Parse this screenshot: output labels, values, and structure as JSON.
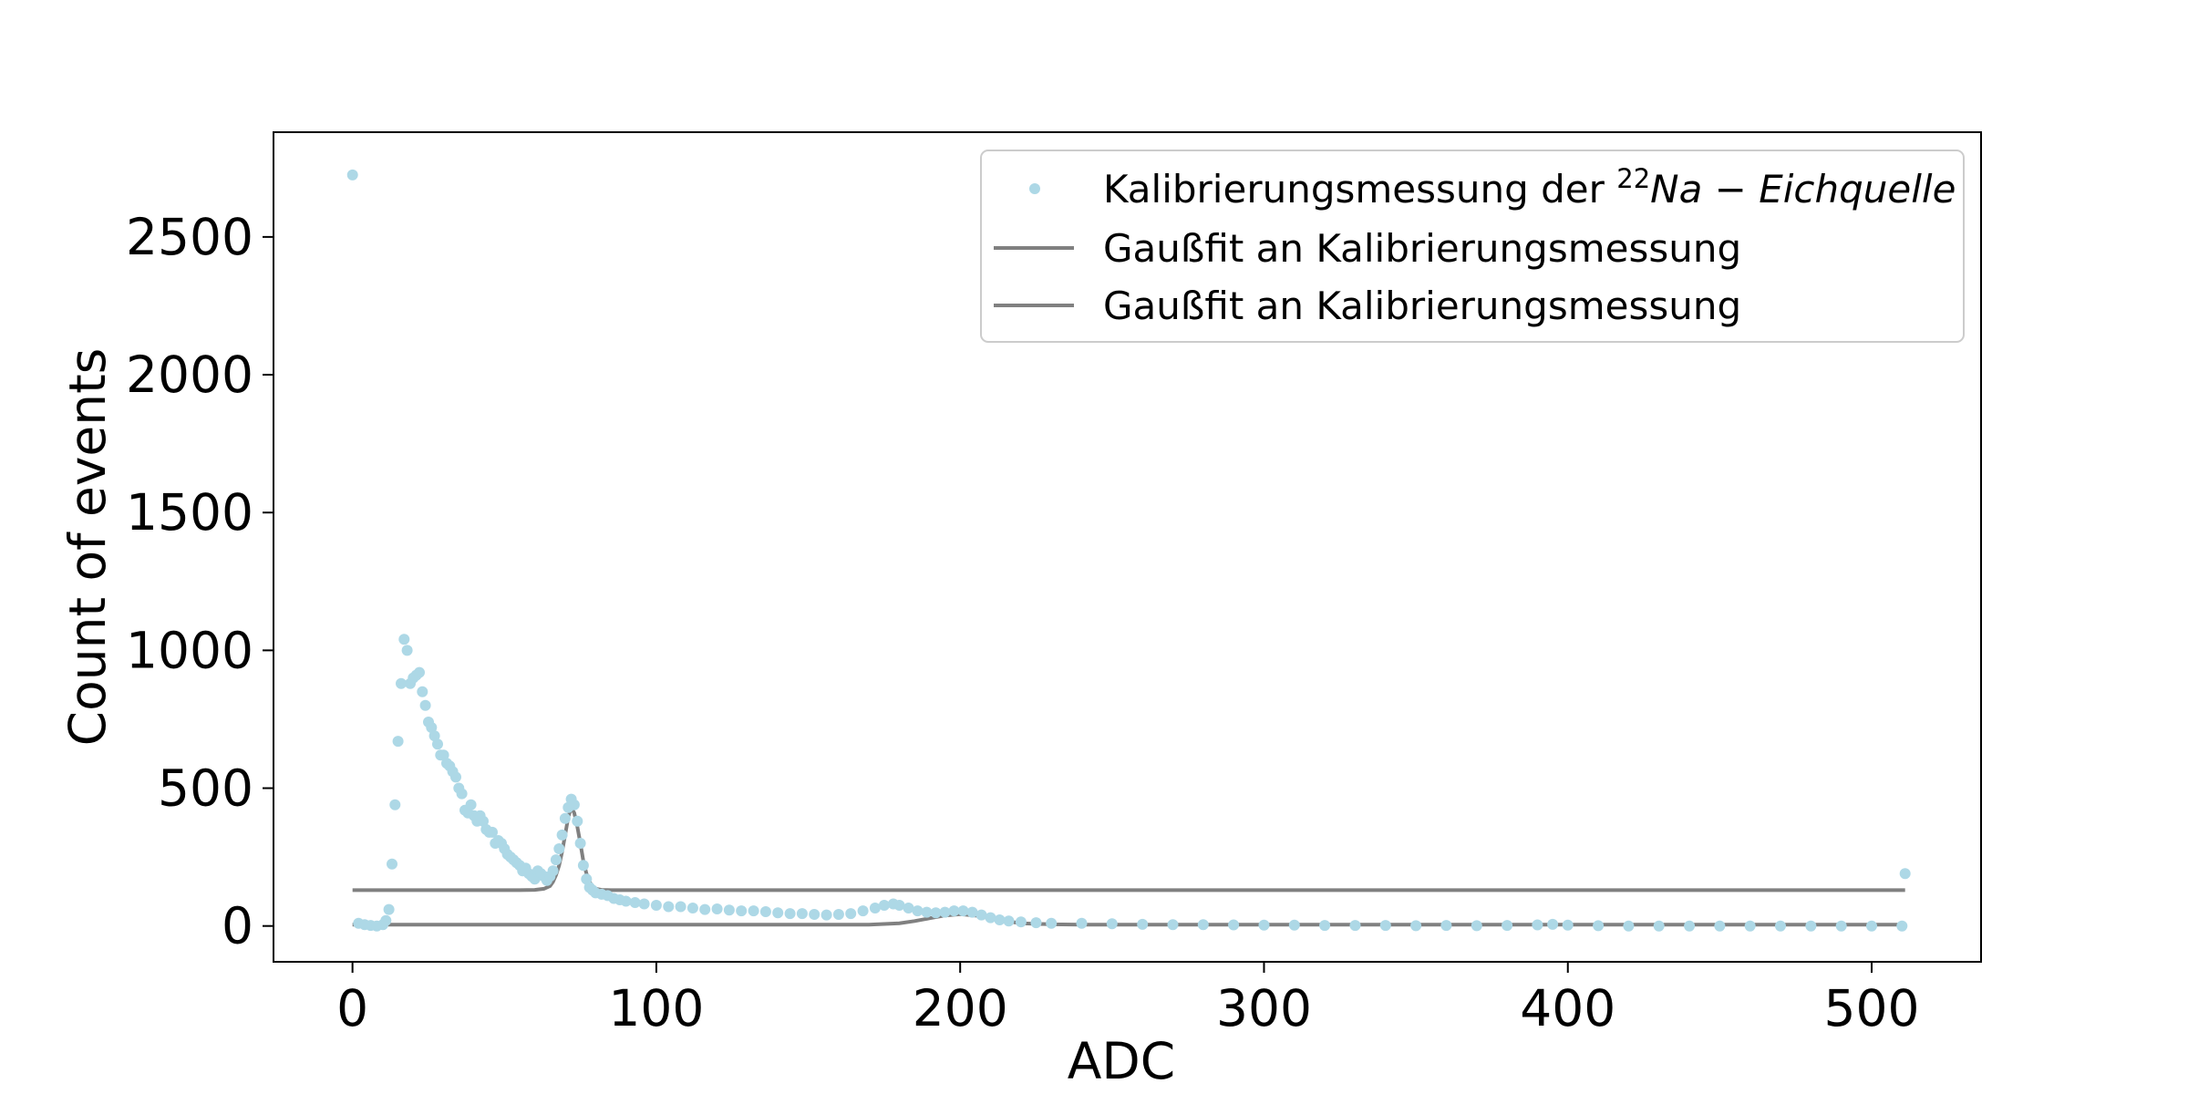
{
  "chart_data": {
    "type": "scatter",
    "xlabel": "ADC",
    "ylabel": "Count of events",
    "xlim": [
      -26,
      536
    ],
    "ylim": [
      -130,
      2880
    ],
    "xticks": [
      0,
      100,
      200,
      300,
      400,
      500
    ],
    "yticks": [
      0,
      500,
      1000,
      1500,
      2000,
      2500
    ],
    "grid": false,
    "legend": {
      "placement": "top-right",
      "entries": [
        {
          "label_prefix": "Kalibrierungsmessung der ",
          "superscript": "22",
          "label_math": "Na − Eichquelle",
          "marker": "dot",
          "color": "#add8e6"
        },
        {
          "label": "Gaußfit an Kalibrierungsmessung",
          "marker": "line",
          "color": "#808080"
        },
        {
          "label": "Gaußfit an Kalibrierungsmessung",
          "marker": "line",
          "color": "#808080"
        }
      ]
    },
    "series": [
      {
        "kind": "scatter",
        "color": "#add8e6",
        "points": [
          [
            0,
            2725
          ],
          [
            2,
            10
          ],
          [
            4,
            5
          ],
          [
            6,
            2
          ],
          [
            8,
            0
          ],
          [
            10,
            5
          ],
          [
            11,
            20
          ],
          [
            12,
            60
          ],
          [
            13,
            225
          ],
          [
            14,
            440
          ],
          [
            15,
            670
          ],
          [
            16,
            880
          ],
          [
            17,
            1040
          ],
          [
            18,
            1000
          ],
          [
            19,
            880
          ],
          [
            20,
            900
          ],
          [
            21,
            910
          ],
          [
            22,
            920
          ],
          [
            23,
            850
          ],
          [
            24,
            800
          ],
          [
            25,
            740
          ],
          [
            26,
            720
          ],
          [
            27,
            690
          ],
          [
            28,
            660
          ],
          [
            29,
            620
          ],
          [
            30,
            620
          ],
          [
            31,
            590
          ],
          [
            32,
            580
          ],
          [
            33,
            560
          ],
          [
            34,
            540
          ],
          [
            35,
            500
          ],
          [
            36,
            480
          ],
          [
            37,
            420
          ],
          [
            38,
            410
          ],
          [
            39,
            440
          ],
          [
            40,
            400
          ],
          [
            41,
            380
          ],
          [
            42,
            400
          ],
          [
            43,
            380
          ],
          [
            44,
            350
          ],
          [
            45,
            340
          ],
          [
            46,
            340
          ],
          [
            47,
            300
          ],
          [
            48,
            310
          ],
          [
            49,
            300
          ],
          [
            50,
            280
          ],
          [
            51,
            260
          ],
          [
            52,
            250
          ],
          [
            53,
            240
          ],
          [
            54,
            230
          ],
          [
            55,
            220
          ],
          [
            56,
            200
          ],
          [
            57,
            210
          ],
          [
            58,
            190
          ],
          [
            59,
            180
          ],
          [
            60,
            170
          ],
          [
            61,
            200
          ],
          [
            62,
            190
          ],
          [
            63,
            180
          ],
          [
            64,
            165
          ],
          [
            65,
            180
          ],
          [
            66,
            200
          ],
          [
            67,
            240
          ],
          [
            68,
            280
          ],
          [
            69,
            330
          ],
          [
            70,
            390
          ],
          [
            71,
            430
          ],
          [
            72,
            460
          ],
          [
            73,
            440
          ],
          [
            74,
            380
          ],
          [
            75,
            300
          ],
          [
            76,
            220
          ],
          [
            77,
            170
          ],
          [
            78,
            140
          ],
          [
            79,
            130
          ],
          [
            80,
            120
          ],
          [
            82,
            115
          ],
          [
            84,
            110
          ],
          [
            86,
            100
          ],
          [
            88,
            95
          ],
          [
            90,
            90
          ],
          [
            93,
            85
          ],
          [
            96,
            80
          ],
          [
            100,
            75
          ],
          [
            104,
            70
          ],
          [
            108,
            70
          ],
          [
            112,
            65
          ],
          [
            116,
            60
          ],
          [
            120,
            62
          ],
          [
            124,
            58
          ],
          [
            128,
            55
          ],
          [
            132,
            55
          ],
          [
            136,
            52
          ],
          [
            140,
            48
          ],
          [
            144,
            45
          ],
          [
            148,
            45
          ],
          [
            152,
            42
          ],
          [
            156,
            40
          ],
          [
            160,
            42
          ],
          [
            164,
            45
          ],
          [
            168,
            55
          ],
          [
            172,
            65
          ],
          [
            175,
            75
          ],
          [
            178,
            80
          ],
          [
            180,
            75
          ],
          [
            183,
            65
          ],
          [
            186,
            55
          ],
          [
            189,
            50
          ],
          [
            192,
            48
          ],
          [
            195,
            50
          ],
          [
            198,
            55
          ],
          [
            201,
            55
          ],
          [
            204,
            50
          ],
          [
            207,
            40
          ],
          [
            210,
            30
          ],
          [
            213,
            22
          ],
          [
            216,
            18
          ],
          [
            220,
            15
          ],
          [
            225,
            12
          ],
          [
            230,
            10
          ],
          [
            240,
            10
          ],
          [
            250,
            8
          ],
          [
            260,
            6
          ],
          [
            270,
            5
          ],
          [
            280,
            5
          ],
          [
            290,
            4
          ],
          [
            300,
            3
          ],
          [
            310,
            3
          ],
          [
            320,
            2
          ],
          [
            330,
            2
          ],
          [
            340,
            2
          ],
          [
            350,
            1
          ],
          [
            360,
            2
          ],
          [
            370,
            1
          ],
          [
            380,
            2
          ],
          [
            390,
            4
          ],
          [
            395,
            6
          ],
          [
            400,
            3
          ],
          [
            410,
            1
          ],
          [
            420,
            0
          ],
          [
            430,
            0
          ],
          [
            440,
            0
          ],
          [
            450,
            0
          ],
          [
            460,
            0
          ],
          [
            470,
            0
          ],
          [
            480,
            0
          ],
          [
            490,
            0
          ],
          [
            500,
            0
          ],
          [
            510,
            0
          ],
          [
            511,
            190
          ]
        ]
      },
      {
        "kind": "line",
        "name": "Gaußfit an Kalibrierungsmessung",
        "color": "#808080",
        "points": [
          [
            0,
            130
          ],
          [
            55,
            130
          ],
          [
            60,
            131
          ],
          [
            63,
            135
          ],
          [
            65,
            145
          ],
          [
            66,
            160
          ],
          [
            67,
            185
          ],
          [
            68,
            220
          ],
          [
            69,
            270
          ],
          [
            70,
            330
          ],
          [
            71,
            395
          ],
          [
            72,
            430
          ],
          [
            73,
            410
          ],
          [
            74,
            360
          ],
          [
            75,
            300
          ],
          [
            76,
            235
          ],
          [
            77,
            190
          ],
          [
            78,
            160
          ],
          [
            79,
            145
          ],
          [
            80,
            135
          ],
          [
            82,
            131
          ],
          [
            85,
            130
          ],
          [
            511,
            130
          ]
        ]
      },
      {
        "kind": "line",
        "name": "Gaußfit an Kalibrierungsmessung",
        "color": "#808080",
        "points": [
          [
            0,
            5
          ],
          [
            170,
            5
          ],
          [
            180,
            10
          ],
          [
            185,
            18
          ],
          [
            190,
            28
          ],
          [
            195,
            38
          ],
          [
            200,
            43
          ],
          [
            205,
            38
          ],
          [
            210,
            28
          ],
          [
            215,
            18
          ],
          [
            220,
            10
          ],
          [
            230,
            6
          ],
          [
            240,
            5
          ],
          [
            511,
            5
          ]
        ]
      }
    ]
  }
}
